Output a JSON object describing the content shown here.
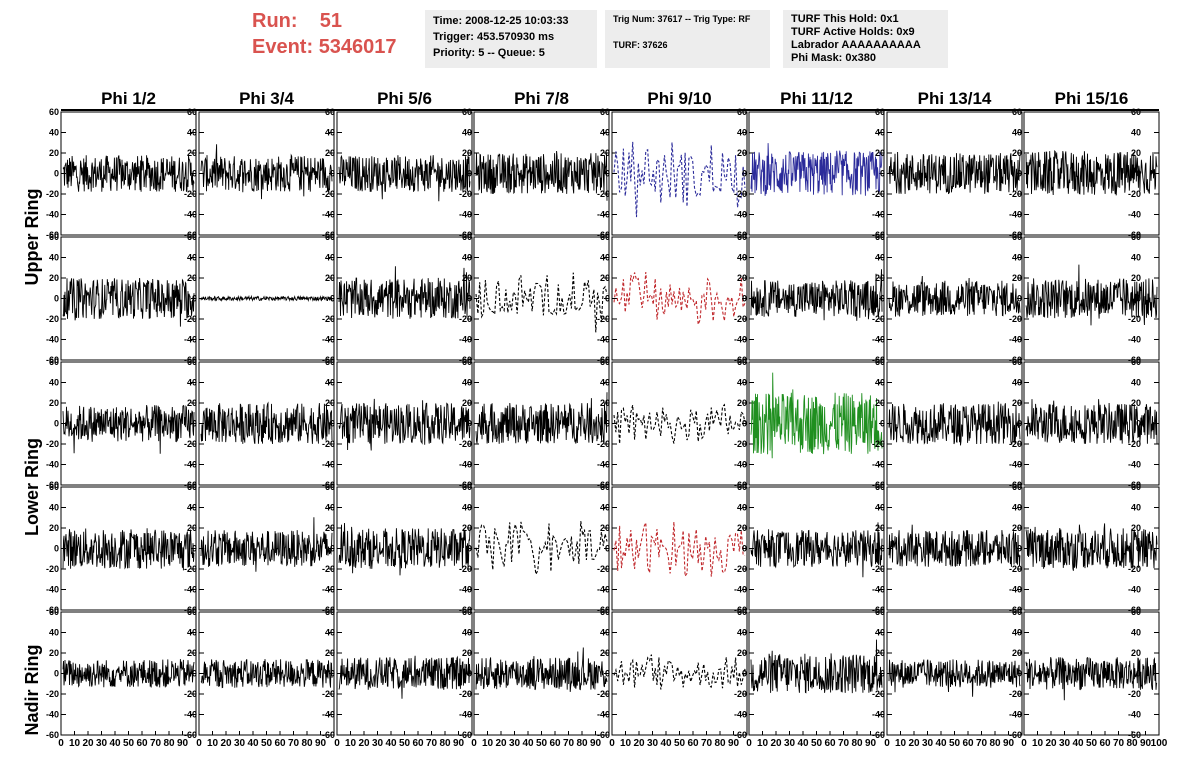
{
  "header": {
    "run_label": "Run:",
    "run_value": "51",
    "event_label": "Event:",
    "event_value": "5346017",
    "time_line": "Time: 2008-12-25 10:03:33",
    "trigger_line": "Trigger: 453.570930 ms",
    "priority_line": "Priority: 5 -- Queue: 5",
    "trig_line": "Trig Num: 37617 -- Trig Type: RF",
    "turf_line": "TURF: 37626",
    "turf_hold_line": "TURF This Hold: 0x1",
    "turf_active_line": "TURF Active Holds: 0x9",
    "labrador_line": "Labrador AAAAAAAAAA",
    "phi_mask_line": "Phi Mask: 0x380"
  },
  "colors": {
    "accent_red": "#d9534f",
    "trace_default": "#000000",
    "trace_blue": "#2b2b9a",
    "trace_red": "#c0282c",
    "trace_green": "#1f8f1f"
  },
  "chart_data": {
    "type": "line",
    "column_titles": [
      "Phi 1/2",
      "Phi 3/4",
      "Phi 5/6",
      "Phi 7/8",
      "Phi 9/10",
      "Phi 11/12",
      "Phi 13/14",
      "Phi 15/16"
    ],
    "row_titles": [
      "Upper Ring",
      "Lower Ring",
      "Nadir Ring"
    ],
    "ylim": [
      -60,
      60
    ],
    "xlim": [
      0,
      100
    ],
    "yticks": [
      "60",
      "40",
      "20",
      "0",
      "-20",
      "-40",
      "-60"
    ],
    "xticks": [
      "0",
      "10",
      "20",
      "30",
      "40",
      "50",
      "60",
      "70",
      "80",
      "90",
      "100"
    ],
    "rows": [
      [
        "black",
        "black",
        "black",
        "black",
        "blue-dashed",
        "blue",
        "black",
        "black"
      ],
      [
        "black",
        "flat",
        "black",
        "black-dashed",
        "red-dashed",
        "black",
        "black",
        "black"
      ],
      [
        "black",
        "black",
        "black",
        "black",
        "black-dashed",
        "green",
        "black",
        "black"
      ],
      [
        "black",
        "black",
        "black",
        "black-dashed",
        "red-dashed",
        "black",
        "black",
        "black"
      ],
      [
        "black",
        "black",
        "black",
        "black",
        "black-dashed",
        "black",
        "black",
        "black"
      ]
    ],
    "amplitudes": [
      [
        18,
        18,
        18,
        20,
        34,
        22,
        20,
        22
      ],
      [
        20,
        2,
        20,
        26,
        30,
        18,
        18,
        20
      ],
      [
        18,
        20,
        20,
        20,
        22,
        30,
        20,
        20
      ],
      [
        20,
        18,
        20,
        28,
        28,
        18,
        18,
        20
      ],
      [
        14,
        14,
        16,
        16,
        18,
        20,
        14,
        16
      ]
    ]
  }
}
